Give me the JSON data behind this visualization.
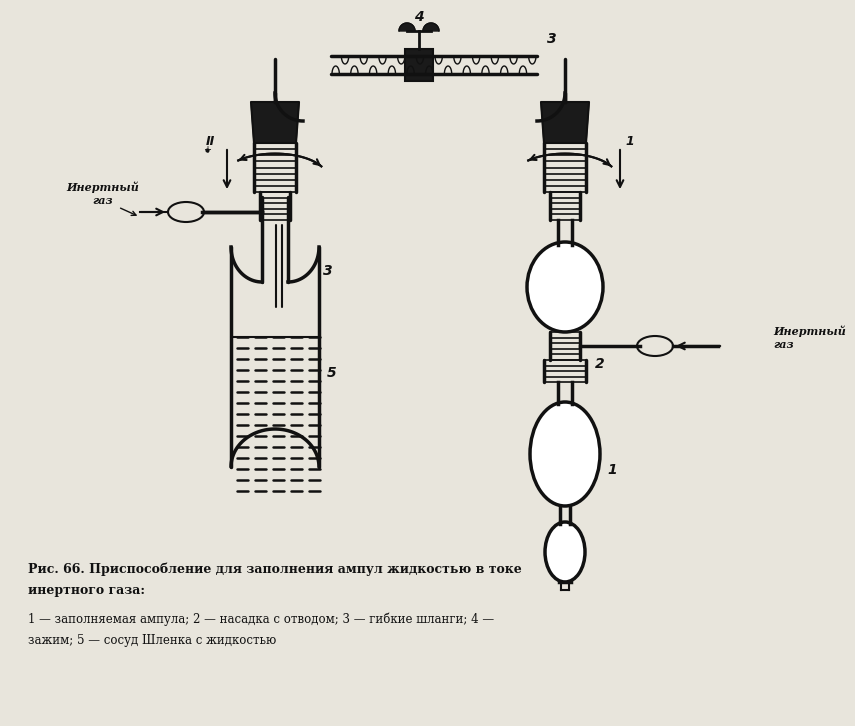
{
  "bg_color": "#e8e5dc",
  "line_color": "#111111",
  "title_line1": "Рис. 66. Приспособление для заполнения ампул жидкостью в токе",
  "title_line2": "инертного газа:",
  "legend_line1": "1 — заполняемая ампула; 2 — насадка с отводом; 3 — гибкие шланги; 4 —",
  "legend_line2": "зажим; 5 — сосуд Шленка с жидкостью",
  "label_II": "II",
  "label_inert1": "Инертный\nгаз",
  "label_inert2": "Инертный\nгаз",
  "label_1a": "1",
  "label_2": "2",
  "label_3_left": "3",
  "label_3_top": "3",
  "label_4_top": "4",
  "label_5": "5"
}
